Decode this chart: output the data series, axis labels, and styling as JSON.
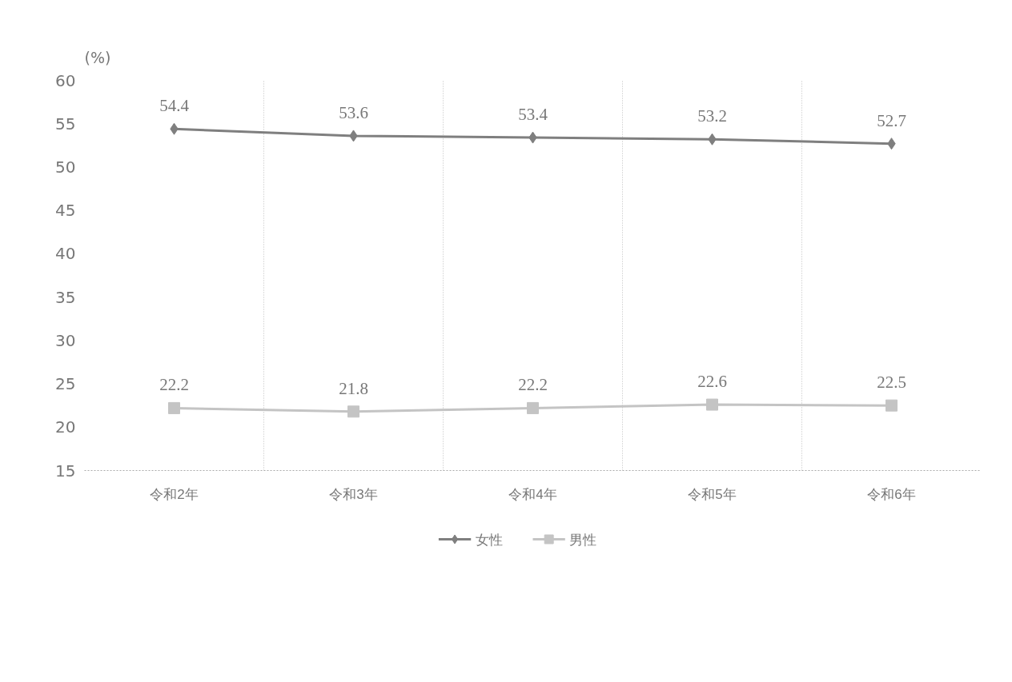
{
  "chart_data": {
    "type": "line",
    "ylabel": "(%)",
    "categories": [
      "令和2年",
      "令和3年",
      "令和4年",
      "令和5年",
      "令和6年"
    ],
    "series": [
      {
        "name": "女性",
        "color": "#7f7f7f",
        "marker": "diamond",
        "values": [
          54.4,
          53.6,
          53.4,
          53.2,
          52.7
        ]
      },
      {
        "name": "男性",
        "color": "#c4c4c4",
        "marker": "square",
        "values": [
          22.2,
          21.8,
          22.2,
          22.6,
          22.5
        ]
      }
    ],
    "ylim": [
      15,
      60
    ],
    "yticks": [
      15,
      20,
      25,
      30,
      35,
      40,
      45,
      50,
      55,
      60
    ],
    "grid": "x",
    "legend": "bottom",
    "data_labels": true,
    "line_style": "solid"
  }
}
